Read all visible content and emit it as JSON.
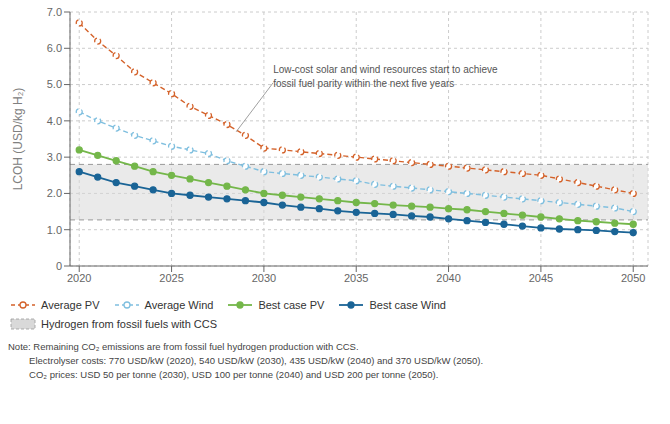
{
  "chart_data": {
    "type": "line",
    "x": [
      2020,
      2021,
      2022,
      2023,
      2024,
      2025,
      2026,
      2027,
      2028,
      2029,
      2030,
      2031,
      2032,
      2033,
      2034,
      2035,
      2036,
      2037,
      2038,
      2039,
      2040,
      2041,
      2042,
      2043,
      2044,
      2045,
      2046,
      2047,
      2048,
      2049,
      2050
    ],
    "series": [
      {
        "name": "Average PV",
        "color": "#d4622a",
        "line_style": "dashed",
        "marker": "open_circle",
        "values": [
          6.7,
          6.2,
          5.8,
          5.35,
          5.05,
          4.75,
          4.4,
          4.15,
          3.9,
          3.6,
          3.25,
          3.2,
          3.15,
          3.1,
          3.05,
          3.0,
          2.95,
          2.9,
          2.85,
          2.8,
          2.75,
          2.7,
          2.65,
          2.6,
          2.55,
          2.5,
          2.4,
          2.3,
          2.2,
          2.1,
          2.0
        ]
      },
      {
        "name": "Average Wind",
        "color": "#7fbfdf",
        "line_style": "dashed",
        "marker": "open_circle",
        "values": [
          4.25,
          4.0,
          3.8,
          3.6,
          3.45,
          3.3,
          3.2,
          3.1,
          2.9,
          2.75,
          2.6,
          2.55,
          2.5,
          2.45,
          2.4,
          2.35,
          2.25,
          2.2,
          2.15,
          2.1,
          2.05,
          2.0,
          1.95,
          1.9,
          1.85,
          1.8,
          1.75,
          1.7,
          1.65,
          1.6,
          1.5
        ]
      },
      {
        "name": "Best case PV",
        "color": "#74b74a",
        "line_style": "solid",
        "marker": "circle",
        "values": [
          3.2,
          3.05,
          2.9,
          2.75,
          2.6,
          2.5,
          2.4,
          2.3,
          2.2,
          2.1,
          2.0,
          1.95,
          1.9,
          1.85,
          1.8,
          1.75,
          1.72,
          1.68,
          1.65,
          1.62,
          1.58,
          1.55,
          1.5,
          1.45,
          1.4,
          1.35,
          1.3,
          1.25,
          1.22,
          1.18,
          1.15
        ]
      },
      {
        "name": "Best case Wind",
        "color": "#1a6496",
        "line_style": "solid",
        "marker": "circle",
        "values": [
          2.6,
          2.45,
          2.3,
          2.2,
          2.1,
          2.0,
          1.95,
          1.9,
          1.85,
          1.8,
          1.75,
          1.68,
          1.62,
          1.58,
          1.52,
          1.48,
          1.45,
          1.42,
          1.38,
          1.35,
          1.3,
          1.25,
          1.2,
          1.15,
          1.1,
          1.05,
          1.02,
          1.0,
          0.98,
          0.95,
          0.92
        ]
      }
    ],
    "band": {
      "name": "Hydrogen from fossil fuels with CCS",
      "lower": 1.27,
      "upper": 2.8,
      "color": "#d9d9d9",
      "line_color": "#999999"
    },
    "ylabel": "LCOH (USD/kg H₂)",
    "xlim": [
      2019.5,
      2050.8
    ],
    "ylim": [
      0,
      7.0
    ],
    "xticks": [
      2020,
      2025,
      2030,
      2035,
      2040,
      2045,
      2050
    ],
    "yticks": [
      0,
      {
        "value": 1,
        "label": "1.0"
      },
      {
        "value": 2,
        "label": "2.0"
      },
      {
        "value": 3,
        "label": "3.0"
      },
      {
        "value": 4,
        "label": "4.0"
      },
      {
        "value": 5,
        "label": "5.0"
      },
      {
        "value": 6,
        "label": "6.0"
      },
      {
        "value": 7,
        "label": "7.0"
      }
    ],
    "grid": true,
    "annotation": {
      "text": "Low-cost solar and wind resources start to achieve\nfossil fuel parity within the next five years",
      "x": 2030.5,
      "y": 5.6,
      "arrow_from": [
        2030.5,
        5.05
      ],
      "arrow_to": [
        2028.5,
        3.7
      ]
    },
    "notes": [
      "Note: Remaining CO₂ emissions are from fossil fuel hydrogen production with CCS.",
      "        Electrolyser costs: 770 USD/kW (2020), 540 USD/kW (2030), 435 USD/kW (2040) and 370 USD/kW (2050).",
      "        CO₂ prices: USD 50 per tonne (2030), USD 100 per tonne (2040) and USD 200 per tonne (2050)."
    ]
  }
}
